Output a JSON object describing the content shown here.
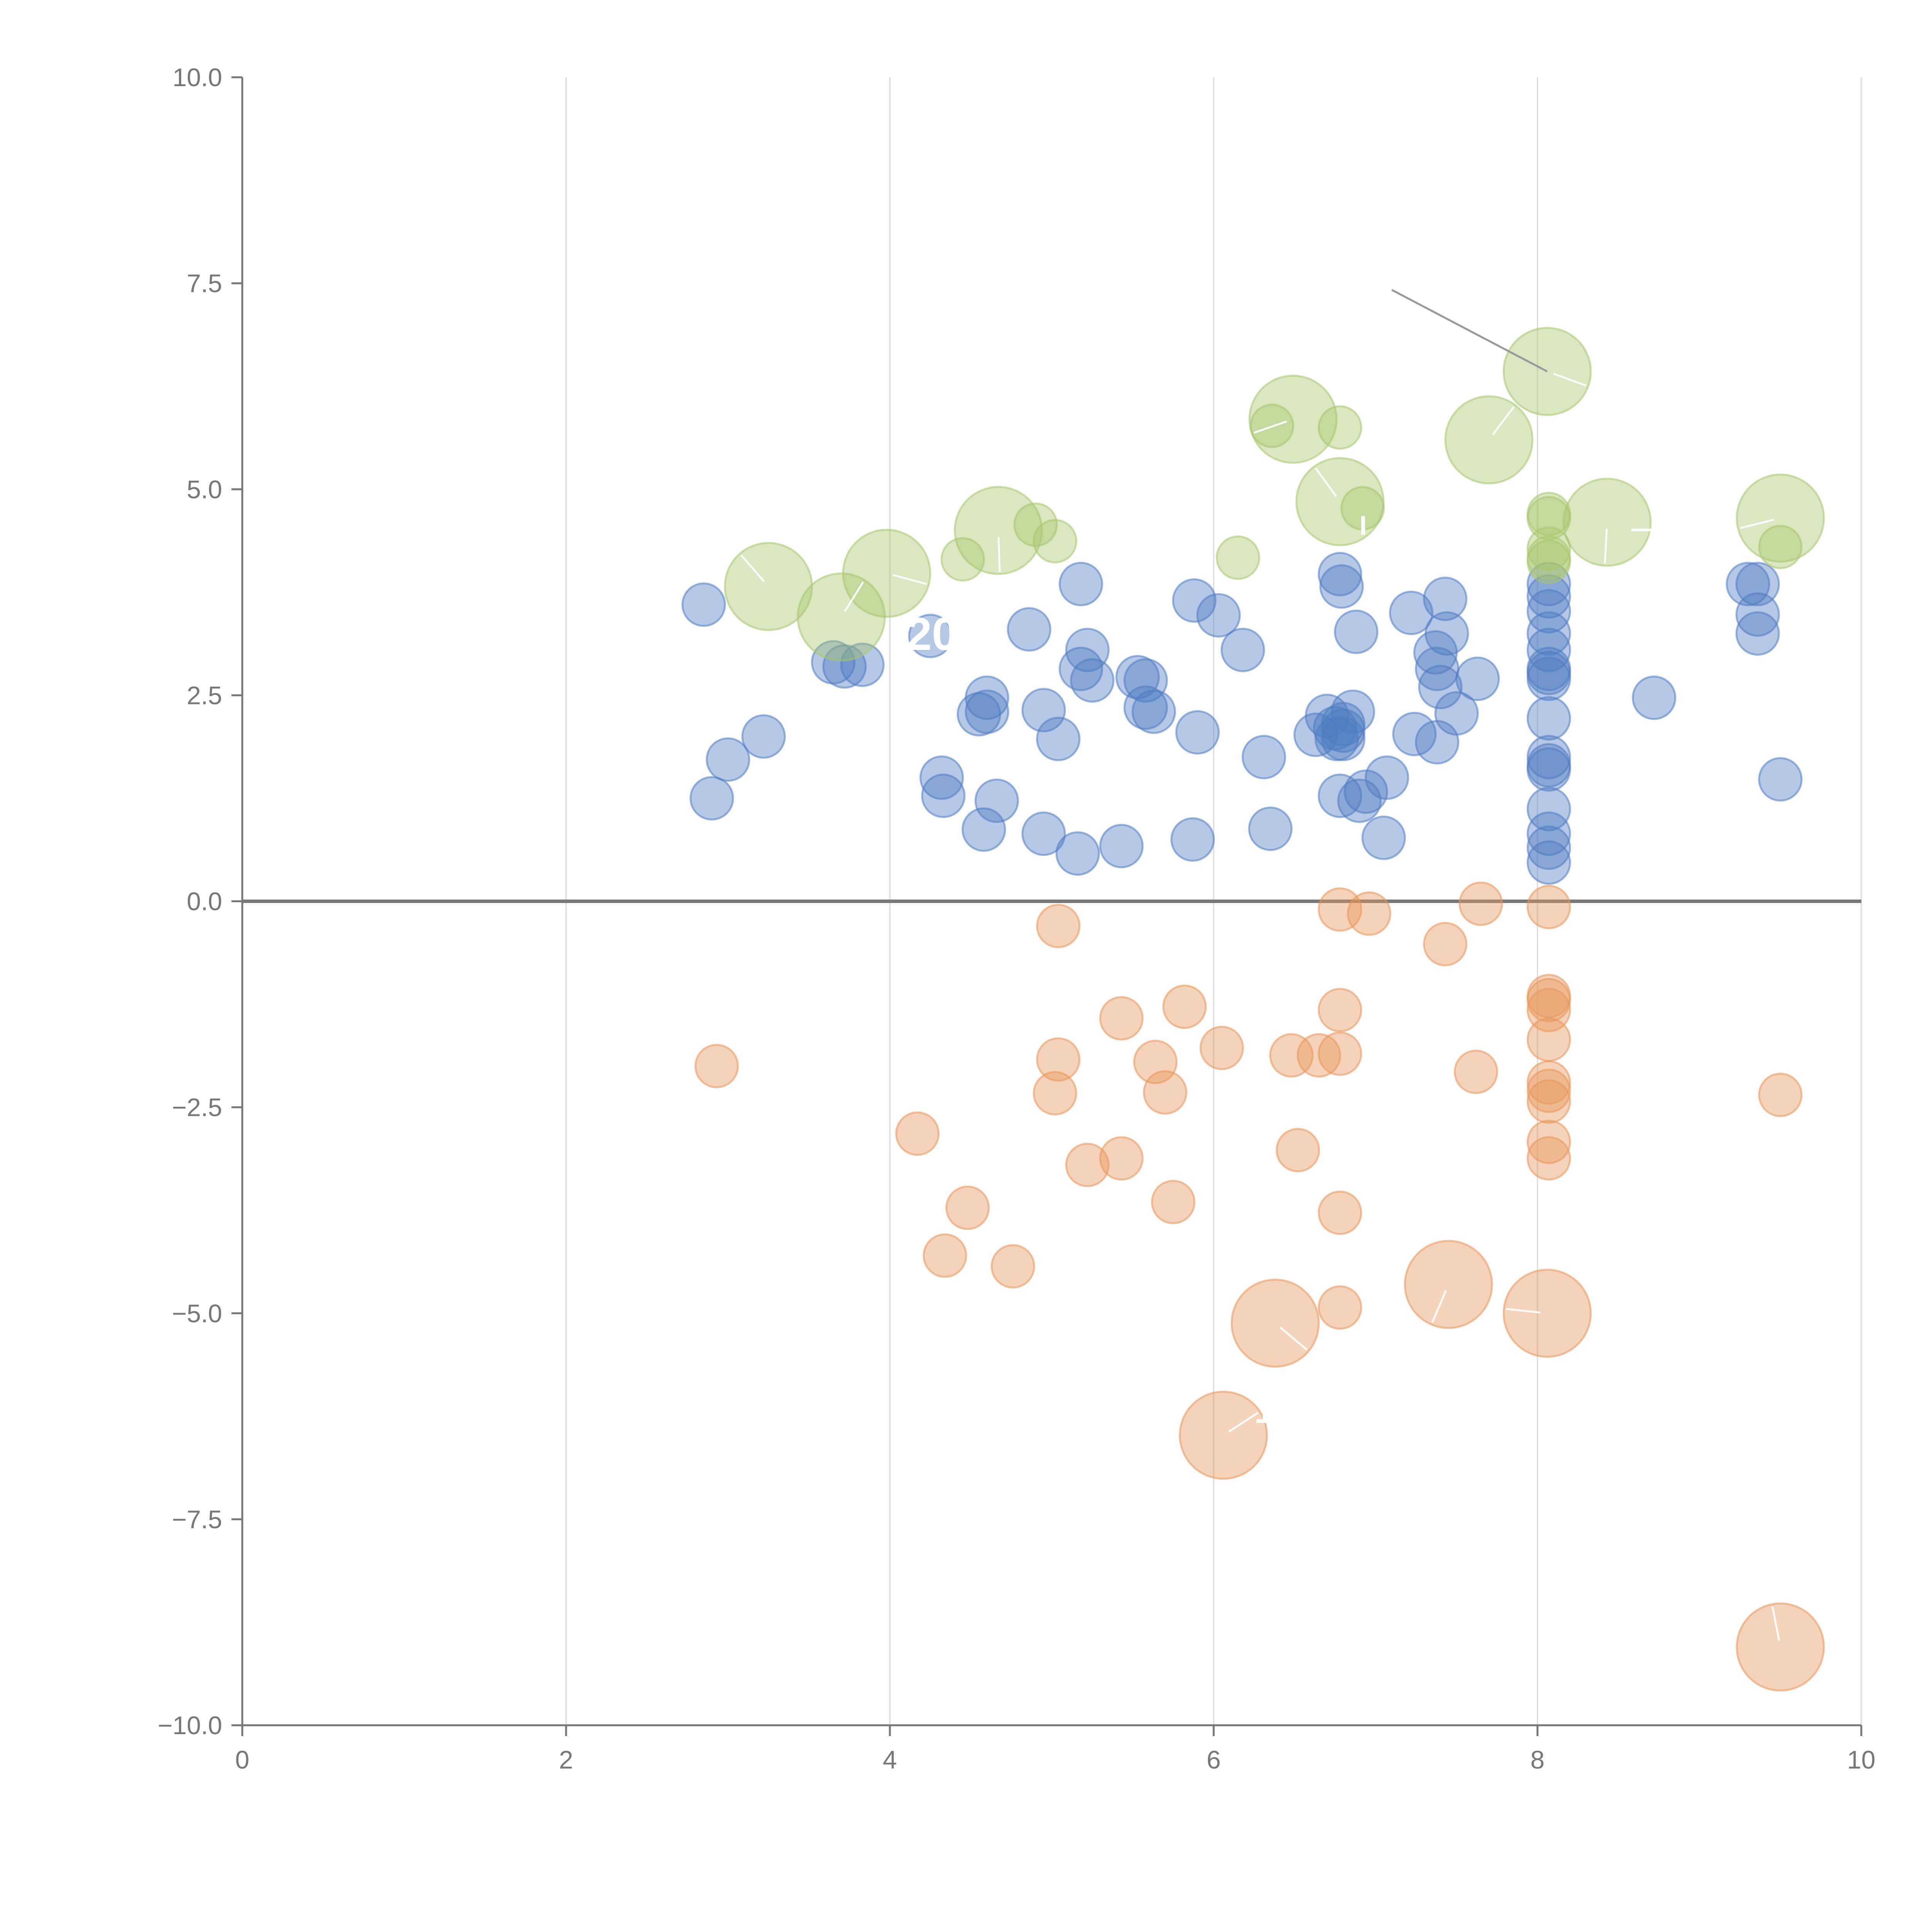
{
  "chart_data": {
    "type": "scatter",
    "title": "",
    "xlabel": "",
    "ylabel": "",
    "xlim": [
      0,
      10
    ],
    "ylim": [
      -10,
      10
    ],
    "x_ticks": [
      0,
      2,
      4,
      6,
      8,
      10
    ],
    "x_tick_labels": [
      "0",
      "2",
      "4",
      "6",
      "8",
      "10"
    ],
    "y_ticks": [
      10,
      7.5,
      5,
      2.5,
      0,
      -2.5,
      -5,
      -7.5,
      -10
    ],
    "y_tick_labels": [
      "10.0",
      "7.5",
      "5.0",
      "2.5",
      "0.0",
      "−2.5",
      "−5.0",
      "−7.5",
      "−10.0"
    ],
    "grid": {
      "vertical": true,
      "horizontal": false
    },
    "reference_line_y": 0,
    "series": [
      {
        "name": "blue",
        "color": "#4e7cc2",
        "points": [
          {
            "x": 2.85,
            "y": 3.6,
            "s": 1
          },
          {
            "x": 2.9,
            "y": 1.25,
            "s": 1
          },
          {
            "x": 3.0,
            "y": 1.72,
            "s": 1
          },
          {
            "x": 3.22,
            "y": 2.0,
            "s": 1
          },
          {
            "x": 3.65,
            "y": 2.9,
            "s": 1
          },
          {
            "x": 3.72,
            "y": 2.85,
            "s": 1
          },
          {
            "x": 3.83,
            "y": 2.87,
            "s": 1
          },
          {
            "x": 4.25,
            "y": 3.22,
            "s": 1
          },
          {
            "x": 4.32,
            "y": 1.5,
            "s": 1
          },
          {
            "x": 4.33,
            "y": 1.28,
            "s": 1
          },
          {
            "x": 4.55,
            "y": 2.27,
            "s": 1
          },
          {
            "x": 4.58,
            "y": 0.87,
            "s": 1
          },
          {
            "x": 4.6,
            "y": 2.47,
            "s": 1
          },
          {
            "x": 4.6,
            "y": 2.3,
            "s": 1
          },
          {
            "x": 4.66,
            "y": 1.22,
            "s": 1
          },
          {
            "x": 4.86,
            "y": 3.3,
            "s": 1
          },
          {
            "x": 4.95,
            "y": 2.32,
            "s": 1
          },
          {
            "x": 4.95,
            "y": 0.82,
            "s": 1
          },
          {
            "x": 5.04,
            "y": 1.97,
            "s": 1
          },
          {
            "x": 5.16,
            "y": 0.58,
            "s": 1
          },
          {
            "x": 5.18,
            "y": 3.85,
            "s": 1
          },
          {
            "x": 5.18,
            "y": 2.82,
            "s": 1
          },
          {
            "x": 5.22,
            "y": 3.05,
            "s": 1
          },
          {
            "x": 5.25,
            "y": 2.68,
            "s": 1
          },
          {
            "x": 5.43,
            "y": 0.67,
            "s": 1
          },
          {
            "x": 5.53,
            "y": 2.72,
            "s": 1
          },
          {
            "x": 5.58,
            "y": 2.35,
            "s": 1
          },
          {
            "x": 5.58,
            "y": 2.68,
            "s": 1
          },
          {
            "x": 5.63,
            "y": 2.3,
            "s": 1
          },
          {
            "x": 5.87,
            "y": 0.75,
            "s": 1
          },
          {
            "x": 5.88,
            "y": 3.65,
            "s": 1
          },
          {
            "x": 5.9,
            "y": 2.05,
            "s": 1
          },
          {
            "x": 6.03,
            "y": 3.47,
            "s": 1
          },
          {
            "x": 6.18,
            "y": 3.05,
            "s": 1
          },
          {
            "x": 6.31,
            "y": 1.75,
            "s": 1
          },
          {
            "x": 6.35,
            "y": 0.88,
            "s": 1
          },
          {
            "x": 6.63,
            "y": 2.02,
            "s": 1
          },
          {
            "x": 6.7,
            "y": 2.25,
            "s": 1
          },
          {
            "x": 6.75,
            "y": 2.1,
            "s": 1
          },
          {
            "x": 6.76,
            "y": 1.97,
            "s": 1
          },
          {
            "x": 6.78,
            "y": 1.28,
            "s": 1
          },
          {
            "x": 6.78,
            "y": 3.97,
            "s": 1
          },
          {
            "x": 6.79,
            "y": 3.82,
            "s": 1
          },
          {
            "x": 6.8,
            "y": 2.07,
            "s": 1
          },
          {
            "x": 6.8,
            "y": 1.97,
            "s": 1
          },
          {
            "x": 6.8,
            "y": 2.15,
            "s": 1
          },
          {
            "x": 6.86,
            "y": 2.3,
            "s": 1
          },
          {
            "x": 6.88,
            "y": 3.27,
            "s": 1
          },
          {
            "x": 6.9,
            "y": 1.22,
            "s": 1
          },
          {
            "x": 6.94,
            "y": 1.33,
            "s": 1
          },
          {
            "x": 7.05,
            "y": 0.77,
            "s": 1
          },
          {
            "x": 7.07,
            "y": 1.5,
            "s": 1
          },
          {
            "x": 7.22,
            "y": 3.5,
            "s": 1
          },
          {
            "x": 7.24,
            "y": 2.03,
            "s": 1
          },
          {
            "x": 7.37,
            "y": 3.02,
            "s": 1
          },
          {
            "x": 7.38,
            "y": 2.82,
            "s": 1
          },
          {
            "x": 7.38,
            "y": 1.93,
            "s": 1
          },
          {
            "x": 7.4,
            "y": 2.6,
            "s": 1
          },
          {
            "x": 7.43,
            "y": 3.67,
            "s": 1
          },
          {
            "x": 7.44,
            "y": 3.25,
            "s": 1
          },
          {
            "x": 7.5,
            "y": 2.28,
            "s": 1
          },
          {
            "x": 7.63,
            "y": 2.7,
            "s": 1
          },
          {
            "x": 8.07,
            "y": 3.85,
            "s": 1
          },
          {
            "x": 8.07,
            "y": 3.7,
            "s": 1
          },
          {
            "x": 8.07,
            "y": 3.52,
            "s": 1
          },
          {
            "x": 8.07,
            "y": 3.25,
            "s": 1
          },
          {
            "x": 8.07,
            "y": 3.05,
            "s": 1
          },
          {
            "x": 8.07,
            "y": 2.82,
            "s": 1
          },
          {
            "x": 8.07,
            "y": 2.77,
            "s": 1
          },
          {
            "x": 8.07,
            "y": 2.7,
            "s": 1
          },
          {
            "x": 8.07,
            "y": 2.22,
            "s": 1
          },
          {
            "x": 8.07,
            "y": 1.75,
            "s": 1
          },
          {
            "x": 8.07,
            "y": 1.65,
            "s": 1
          },
          {
            "x": 8.07,
            "y": 1.6,
            "s": 1
          },
          {
            "x": 8.07,
            "y": 1.12,
            "s": 1
          },
          {
            "x": 8.07,
            "y": 0.82,
            "s": 1
          },
          {
            "x": 8.07,
            "y": 0.65,
            "s": 1
          },
          {
            "x": 8.07,
            "y": 0.47,
            "s": 1
          },
          {
            "x": 8.72,
            "y": 2.47,
            "s": 1
          },
          {
            "x": 9.3,
            "y": 3.85,
            "s": 1
          },
          {
            "x": 9.36,
            "y": 3.85,
            "s": 1
          },
          {
            "x": 9.36,
            "y": 3.48,
            "s": 1
          },
          {
            "x": 9.36,
            "y": 3.25,
            "s": 1
          },
          {
            "x": 9.5,
            "y": 1.48,
            "s": 1
          }
        ]
      },
      {
        "name": "orange",
        "color": "#e8965a",
        "points": [
          {
            "x": 2.93,
            "y": -2.0,
            "s": 1
          },
          {
            "x": 4.17,
            "y": -2.82,
            "s": 1
          },
          {
            "x": 4.34,
            "y": -4.3,
            "s": 1
          },
          {
            "x": 4.48,
            "y": -3.72,
            "s": 1
          },
          {
            "x": 4.76,
            "y": -4.43,
            "s": 1
          },
          {
            "x": 5.02,
            "y": -2.33,
            "s": 1
          },
          {
            "x": 5.04,
            "y": -0.3,
            "s": 1
          },
          {
            "x": 5.04,
            "y": -1.92,
            "s": 1
          },
          {
            "x": 5.22,
            "y": -3.2,
            "s": 1
          },
          {
            "x": 5.43,
            "y": -1.42,
            "s": 1
          },
          {
            "x": 5.43,
            "y": -3.12,
            "s": 1
          },
          {
            "x": 5.64,
            "y": -1.95,
            "s": 1
          },
          {
            "x": 5.7,
            "y": -2.32,
            "s": 1
          },
          {
            "x": 5.75,
            "y": -3.65,
            "s": 1
          },
          {
            "x": 5.82,
            "y": -1.28,
            "s": 1
          },
          {
            "x": 6.05,
            "y": -1.78,
            "s": 1
          },
          {
            "x": 6.48,
            "y": -1.87,
            "s": 1
          },
          {
            "x": 6.52,
            "y": -3.02,
            "s": 1
          },
          {
            "x": 6.65,
            "y": -1.87,
            "s": 1
          },
          {
            "x": 6.78,
            "y": -0.1,
            "s": 1
          },
          {
            "x": 6.78,
            "y": -1.32,
            "s": 1
          },
          {
            "x": 6.78,
            "y": -1.85,
            "s": 1
          },
          {
            "x": 6.78,
            "y": -3.78,
            "s": 1
          },
          {
            "x": 6.78,
            "y": -4.93,
            "s": 1
          },
          {
            "x": 6.96,
            "y": -0.15,
            "s": 1
          },
          {
            "x": 7.43,
            "y": -0.52,
            "s": 1
          },
          {
            "x": 7.62,
            "y": -2.07,
            "s": 1
          },
          {
            "x": 7.65,
            "y": -0.03,
            "s": 1
          },
          {
            "x": 8.07,
            "y": -0.07,
            "s": 1
          },
          {
            "x": 8.07,
            "y": -1.15,
            "s": 1
          },
          {
            "x": 8.07,
            "y": -1.2,
            "s": 1
          },
          {
            "x": 8.07,
            "y": -1.32,
            "s": 1
          },
          {
            "x": 8.07,
            "y": -1.68,
            "s": 1
          },
          {
            "x": 8.07,
            "y": -2.2,
            "s": 1
          },
          {
            "x": 8.07,
            "y": -2.3,
            "s": 1
          },
          {
            "x": 8.07,
            "y": -2.43,
            "s": 1
          },
          {
            "x": 8.07,
            "y": -2.92,
            "s": 1
          },
          {
            "x": 8.07,
            "y": -3.12,
            "s": 1
          },
          {
            "x": 9.5,
            "y": -2.35,
            "s": 1
          },
          {
            "x": 6.06,
            "y": -6.48,
            "s": 2.05
          },
          {
            "x": 6.38,
            "y": -5.12,
            "s": 2.05
          },
          {
            "x": 7.45,
            "y": -4.65,
            "s": 2.05
          },
          {
            "x": 8.06,
            "y": -5.0,
            "s": 2.05
          },
          {
            "x": 9.5,
            "y": -9.05,
            "s": 2.05
          }
        ]
      },
      {
        "name": "green",
        "color": "#a7c66b",
        "points": [
          {
            "x": 4.45,
            "y": 4.15,
            "s": 1
          },
          {
            "x": 4.9,
            "y": 4.57,
            "s": 1
          },
          {
            "x": 5.02,
            "y": 4.37,
            "s": 1
          },
          {
            "x": 6.15,
            "y": 4.17,
            "s": 1
          },
          {
            "x": 6.36,
            "y": 5.77,
            "s": 1
          },
          {
            "x": 6.78,
            "y": 5.75,
            "s": 1
          },
          {
            "x": 6.92,
            "y": 4.77,
            "s": 1
          },
          {
            "x": 8.07,
            "y": 4.7,
            "s": 1
          },
          {
            "x": 8.07,
            "y": 4.65,
            "s": 1
          },
          {
            "x": 8.07,
            "y": 4.28,
            "s": 1
          },
          {
            "x": 8.07,
            "y": 4.17,
            "s": 1
          },
          {
            "x": 8.07,
            "y": 4.12,
            "s": 1
          },
          {
            "x": 9.5,
            "y": 4.3,
            "s": 1
          },
          {
            "x": 3.25,
            "y": 3.82,
            "s": 2.05
          },
          {
            "x": 3.7,
            "y": 3.45,
            "s": 2.05
          },
          {
            "x": 3.98,
            "y": 3.98,
            "s": 2.05
          },
          {
            "x": 4.67,
            "y": 4.5,
            "s": 2.05
          },
          {
            "x": 6.49,
            "y": 5.85,
            "s": 2.05
          },
          {
            "x": 6.78,
            "y": 4.85,
            "s": 2.05
          },
          {
            "x": 7.7,
            "y": 5.6,
            "s": 2.05
          },
          {
            "x": 8.06,
            "y": 6.43,
            "s": 2.05
          },
          {
            "x": 8.43,
            "y": 4.6,
            "s": 2.05
          },
          {
            "x": 9.5,
            "y": 4.65,
            "s": 2.05
          }
        ]
      }
    ],
    "annotations": [
      {
        "text": "20",
        "x": 4.1,
        "y": 3.05,
        "size": "large"
      },
      {
        "text": "16",
        "x": 6.25,
        "y": -6.33,
        "size": "medium"
      },
      {
        "text": "+",
        "x": 8.35,
        "y": 6.55,
        "size": "small"
      },
      {
        "text": "I",
        "x": 6.9,
        "y": 4.45,
        "size": "tiny"
      },
      {
        "text": "—",
        "x": 8.58,
        "y": 4.42,
        "size": "tiny"
      }
    ],
    "callout": {
      "from_x": 7.1,
      "from_y": 7.42,
      "to_x": 8.06,
      "to_y": 6.43
    }
  }
}
